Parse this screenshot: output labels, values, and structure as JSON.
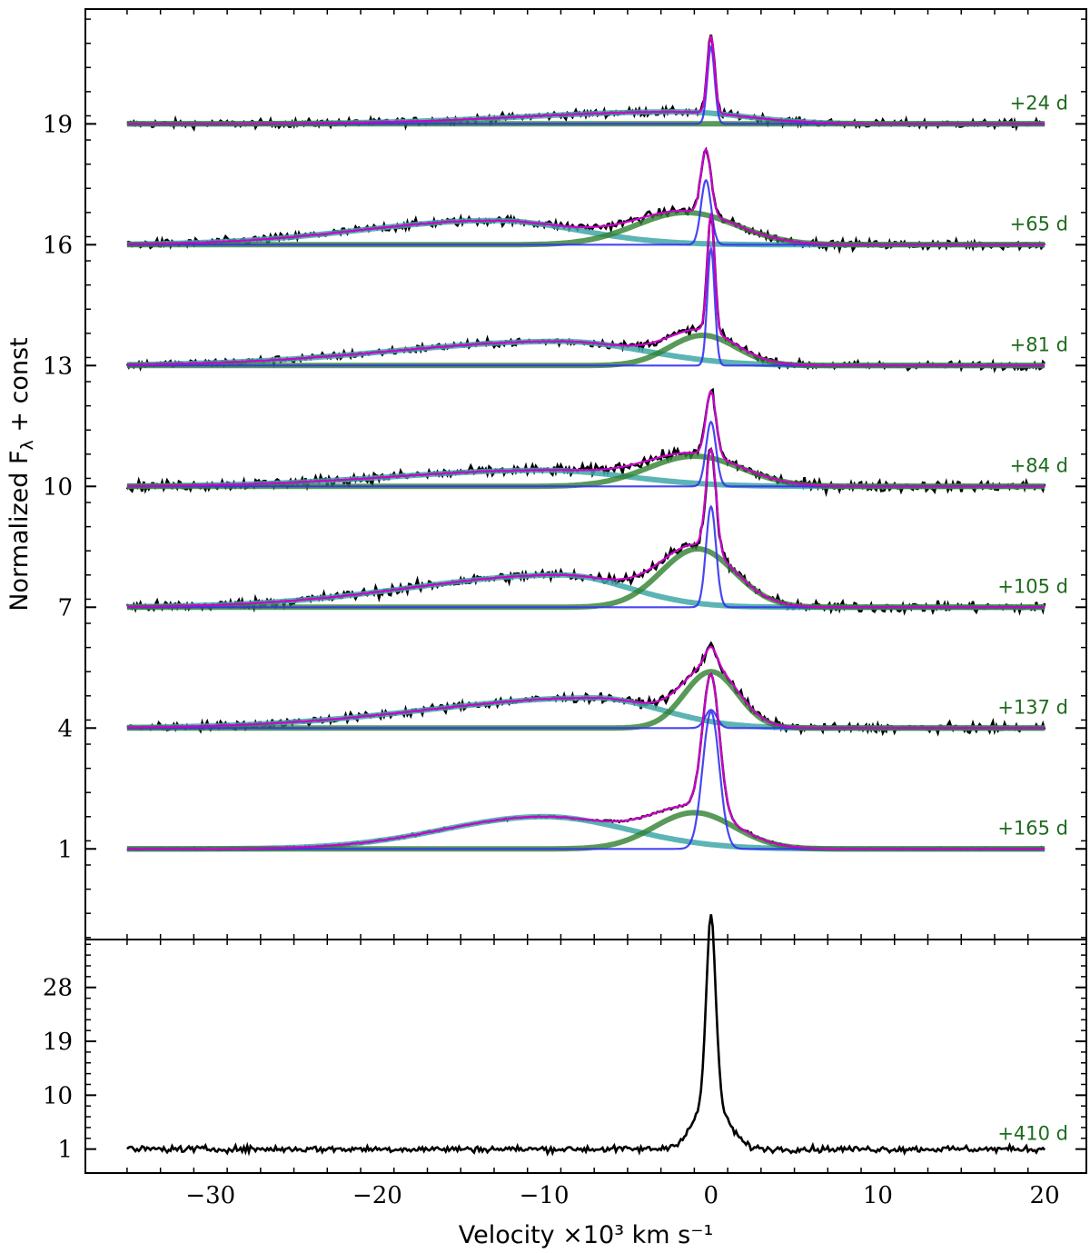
{
  "chart_data": [
    {
      "type": "line",
      "panel": "top",
      "ylabel_main": "Normalized F",
      "ylabel_sub": "λ",
      "ylabel_tail": " + const",
      "xlim": [
        -37.5,
        22.5
      ],
      "ylim": [
        -1.25,
        21.85
      ],
      "yticks": [
        "1",
        "4",
        "7",
        "10",
        "13",
        "16",
        "19"
      ],
      "colors": {
        "data": "#000000",
        "narrow": "#3333ee",
        "broad_blue": "#3fa7a7",
        "intermediate": "#2f7f2f",
        "total": "#cc00cc",
        "label": "#1e6b1e"
      },
      "series": [
        {
          "label": "+24 d",
          "offset": 19,
          "noise": 0.09,
          "narrow": {
            "amp": 1.9,
            "center": 0.0,
            "sigma": 0.22
          },
          "intermediate": {
            "amp": 0.0,
            "center": 0.0,
            "sigma": 2.0
          },
          "broad": {
            "amp": 0.3,
            "center": -2.0,
            "sigma_left": 9.0,
            "sigma_right": 4.0
          }
        },
        {
          "label": "+65 d",
          "offset": 16,
          "noise": 0.1,
          "narrow": {
            "amp": 1.6,
            "center": -0.3,
            "sigma": 0.3
          },
          "intermediate": {
            "amp": 0.8,
            "center": -1.5,
            "sigma": 3.0
          },
          "broad": {
            "amp": 0.6,
            "center": -13.0,
            "sigma_left": 8.0,
            "sigma_right": 5.0
          }
        },
        {
          "label": "+81 d",
          "offset": 13,
          "noise": 0.09,
          "narrow": {
            "amp": 2.9,
            "center": 0.0,
            "sigma": 0.22
          },
          "intermediate": {
            "amp": 0.75,
            "center": -0.5,
            "sigma": 2.0
          },
          "broad": {
            "amp": 0.6,
            "center": -9.0,
            "sigma_left": 10.0,
            "sigma_right": 5.0
          }
        },
        {
          "label": "+84 d",
          "offset": 10,
          "noise": 0.12,
          "narrow": {
            "amp": 1.6,
            "center": 0.0,
            "sigma": 0.3
          },
          "intermediate": {
            "amp": 0.75,
            "center": -1.0,
            "sigma": 2.8
          },
          "broad": {
            "amp": 0.4,
            "center": -10.0,
            "sigma_left": 9.0,
            "sigma_right": 5.0
          }
        },
        {
          "label": "+105 d",
          "offset": 7,
          "noise": 0.12,
          "narrow": {
            "amp": 2.5,
            "center": 0.0,
            "sigma": 0.3
          },
          "intermediate": {
            "amp": 1.45,
            "center": -0.8,
            "sigma": 2.2
          },
          "broad": {
            "amp": 0.8,
            "center": -9.0,
            "sigma_left": 9.0,
            "sigma_right": 4.0
          }
        },
        {
          "label": "+137 d",
          "offset": 4,
          "noise": 0.1,
          "narrow": {
            "amp": 0.45,
            "center": 0.0,
            "sigma": 0.35
          },
          "intermediate": {
            "amp": 1.4,
            "center": 0.0,
            "sigma": 1.6
          },
          "broad": {
            "amp": 0.75,
            "center": -7.0,
            "sigma_left": 10.0,
            "sigma_right": 4.0
          }
        },
        {
          "label": "+165 d",
          "offset": 1,
          "noise": 0.03,
          "narrow": {
            "amp": 3.4,
            "center": 0.0,
            "sigma": 0.5
          },
          "intermediate": {
            "amp": 0.9,
            "center": -1.0,
            "sigma": 2.4
          },
          "broad": {
            "amp": 0.8,
            "center": -10.0,
            "sigma_left": 6.0,
            "sigma_right": 5.0
          }
        }
      ]
    },
    {
      "type": "line",
      "panel": "bottom",
      "xlabel": "Velocity ×10³ km s⁻¹",
      "xlim": [
        -37.5,
        22.5
      ],
      "xticks": [
        "−30",
        "−20",
        "−10",
        "0",
        "10",
        "20"
      ],
      "ylim": [
        -3.0,
        36.0
      ],
      "yticks": [
        "1",
        "10",
        "19",
        "28"
      ],
      "series": [
        {
          "label": "+410 d",
          "offset": 0,
          "noise": 0.5,
          "peak": {
            "amp": 31.0,
            "center": 0.0,
            "sigma": 0.28
          },
          "wings": {
            "amp": 8.0,
            "center": 0.0,
            "sigma": 1.0
          }
        }
      ]
    }
  ]
}
